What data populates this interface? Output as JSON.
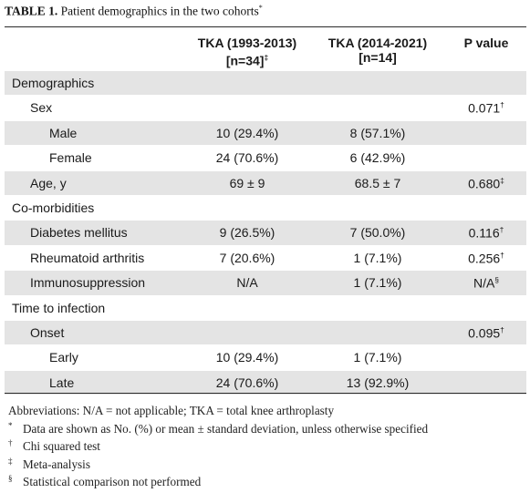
{
  "caption": {
    "tag": "TABLE 1.",
    "text": "Patient demographics in the two cohorts",
    "mark": "*"
  },
  "header": {
    "col1": "TKA (1993-2013)",
    "col1_n": "[n=34]",
    "col1_mark": "‡",
    "col2": "TKA (2014-2021)",
    "col2_n": "[n=14]",
    "col3": "P value"
  },
  "rows": [
    {
      "label": "Demographics",
      "level": 0,
      "shaded": true,
      "v1": "",
      "v2": "",
      "p": "",
      "pmark": ""
    },
    {
      "label": "Sex",
      "level": 1,
      "shaded": false,
      "v1": "",
      "v2": "",
      "p": "0.071",
      "pmark": "†"
    },
    {
      "label": "Male",
      "level": 2,
      "shaded": true,
      "v1": "10 (29.4%)",
      "v2": "8 (57.1%)",
      "p": "",
      "pmark": ""
    },
    {
      "label": "Female",
      "level": 2,
      "shaded": false,
      "v1": "24 (70.6%)",
      "v2": "6 (42.9%)",
      "p": "",
      "pmark": ""
    },
    {
      "label": "Age, y",
      "level": 1,
      "shaded": true,
      "v1": "69 ± 9",
      "v2": "68.5 ± 7",
      "p": "0.680",
      "pmark": "‡"
    },
    {
      "label": "Co-morbidities",
      "level": 0,
      "shaded": false,
      "v1": "",
      "v2": "",
      "p": "",
      "pmark": ""
    },
    {
      "label": "Diabetes mellitus",
      "level": 1,
      "shaded": true,
      "v1": "9 (26.5%)",
      "v2": "7 (50.0%)",
      "p": "0.116",
      "pmark": "†"
    },
    {
      "label": "Rheumatoid arthritis",
      "level": 1,
      "shaded": false,
      "v1": "7 (20.6%)",
      "v2": "1 (7.1%)",
      "p": "0.256",
      "pmark": "†"
    },
    {
      "label": "Immunosuppression",
      "level": 1,
      "shaded": true,
      "v1": "N/A",
      "v2": "1 (7.1%)",
      "p": "N/A",
      "pmark": "§"
    },
    {
      "label": "Time to infection",
      "level": 0,
      "shaded": false,
      "v1": "",
      "v2": "",
      "p": "",
      "pmark": ""
    },
    {
      "label": "Onset",
      "level": 1,
      "shaded": true,
      "v1": "",
      "v2": "",
      "p": "0.095",
      "pmark": "†"
    },
    {
      "label": "Early",
      "level": 2,
      "shaded": false,
      "v1": "10 (29.4%)",
      "v2": "1 (7.1%)",
      "p": "",
      "pmark": ""
    },
    {
      "label": "Late",
      "level": 2,
      "shaded": true,
      "v1": "24 (70.6%)",
      "v2": "13 (92.9%)",
      "p": "",
      "pmark": ""
    }
  ],
  "footnotes": {
    "abbreviations": "Abbreviations: N/A = not applicable; TKA = total knee arthroplasty",
    "items": [
      {
        "sym": "*",
        "text": "Data are shown as No. (%) or mean ± standard deviation, unless otherwise specified"
      },
      {
        "sym": "†",
        "text": "Chi squared test"
      },
      {
        "sym": "‡",
        "text": "Meta-analysis"
      },
      {
        "sym": "§",
        "text": "Statistical comparison not performed"
      }
    ]
  }
}
